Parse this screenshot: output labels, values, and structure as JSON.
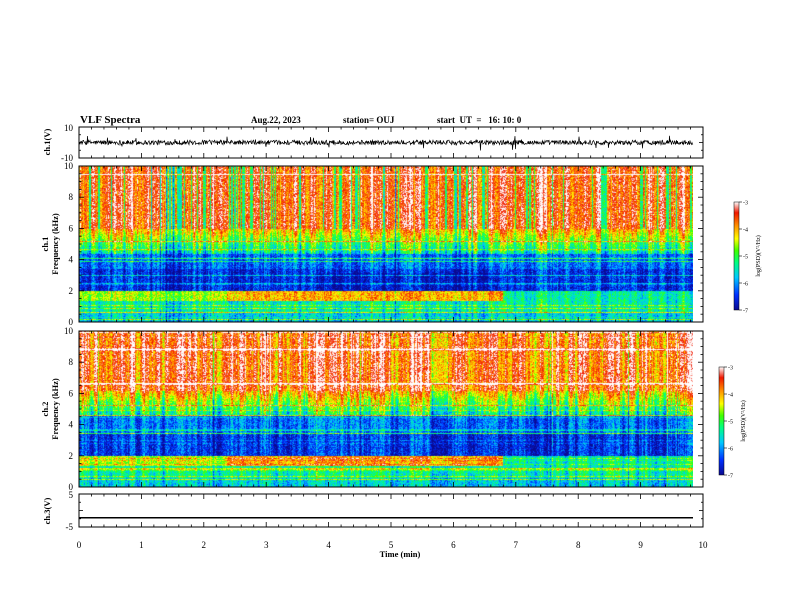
{
  "header": {
    "title": "VLF Spectra",
    "date": "Aug.22, 2023",
    "station": "station= OUJ",
    "start": "start  UT  =   16: 10: 0"
  },
  "colors": {
    "background": "#ffffff",
    "axis": "#000000",
    "colormap": [
      "#0a0a90",
      "#0030ff",
      "#00c8ff",
      "#00ff80",
      "#40ff00",
      "#ffff00",
      "#ff9000",
      "#f01800",
      "#ffffff"
    ]
  },
  "chart_data": [
    {
      "id": "ch1_waveform",
      "type": "line",
      "ylabel": "ch.1(V)",
      "ylim": [
        -10,
        10
      ],
      "yticks": [
        "10",
        "-10"
      ],
      "baseline": 0,
      "noise_amplitude": 1.5,
      "spike_amplitude": 5
    },
    {
      "id": "ch1_spectrogram",
      "type": "heatmap",
      "ylabel": "ch.1\nFrequency (kHz)",
      "xlim": [
        0,
        10
      ],
      "ylim": [
        0,
        10
      ],
      "yticks": [
        "0",
        "2",
        "4",
        "6",
        "8",
        "10"
      ],
      "data_extent_min": 9.83,
      "colorbar": {
        "label": "log(PSD)(V²/Hz)",
        "range": [
          -7,
          -3
        ],
        "ticks": [
          "-3",
          "-4",
          "-5",
          "-6",
          "-7"
        ]
      },
      "bands": [
        {
          "range_khz": [
            0,
            0.6
          ],
          "level": "low"
        },
        {
          "range_khz": [
            0.6,
            1.4
          ],
          "level": "mixed-green"
        },
        {
          "range_khz": [
            1.4,
            2.0
          ],
          "level": "high-red-band"
        },
        {
          "range_khz": [
            2.0,
            4.4
          ],
          "level": "lowest-blue"
        },
        {
          "range_khz": [
            4.4,
            6.0
          ],
          "level": "green-transition"
        },
        {
          "range_khz": [
            6.0,
            10.0
          ],
          "level": "high-red-orange"
        }
      ],
      "red_band_end_min": 6.8
    },
    {
      "id": "ch2_spectrogram",
      "type": "heatmap",
      "ylabel": "ch.2\nFrequency (kHz)",
      "xlim": [
        0,
        10
      ],
      "ylim": [
        0,
        10
      ],
      "yticks": [
        "0",
        "2",
        "4",
        "6",
        "8",
        "10"
      ],
      "data_extent_min": 9.83,
      "colorbar": {
        "label": "log(PSD)(V²/Hz)",
        "range": [
          -7,
          -3
        ],
        "ticks": [
          "-3",
          "-4",
          "-5",
          "-6",
          "-7"
        ]
      },
      "bands": [
        {
          "range_khz": [
            0,
            0.6
          ],
          "level": "low"
        },
        {
          "range_khz": [
            0.6,
            1.4
          ],
          "level": "mixed-green"
        },
        {
          "range_khz": [
            1.4,
            2.0
          ],
          "level": "high-red-band"
        },
        {
          "range_khz": [
            2.0,
            4.6
          ],
          "level": "lowest-blue"
        },
        {
          "range_khz": [
            4.6,
            6.4
          ],
          "level": "yellow-transition"
        },
        {
          "range_khz": [
            6.4,
            10.0
          ],
          "level": "high-red"
        }
      ],
      "red_band_end_min": 6.8
    },
    {
      "id": "ch3_waveform",
      "type": "line",
      "ylabel": "ch.3(V)",
      "ylim": [
        -5,
        5
      ],
      "yticks": [
        "5",
        "-5"
      ],
      "baseline": -2.2
    }
  ],
  "xaxis": {
    "label": "Time (min)",
    "range": [
      0,
      10
    ],
    "ticks": [
      "0",
      "1",
      "2",
      "3",
      "4",
      "5",
      "6",
      "7",
      "8",
      "9",
      "10"
    ]
  }
}
